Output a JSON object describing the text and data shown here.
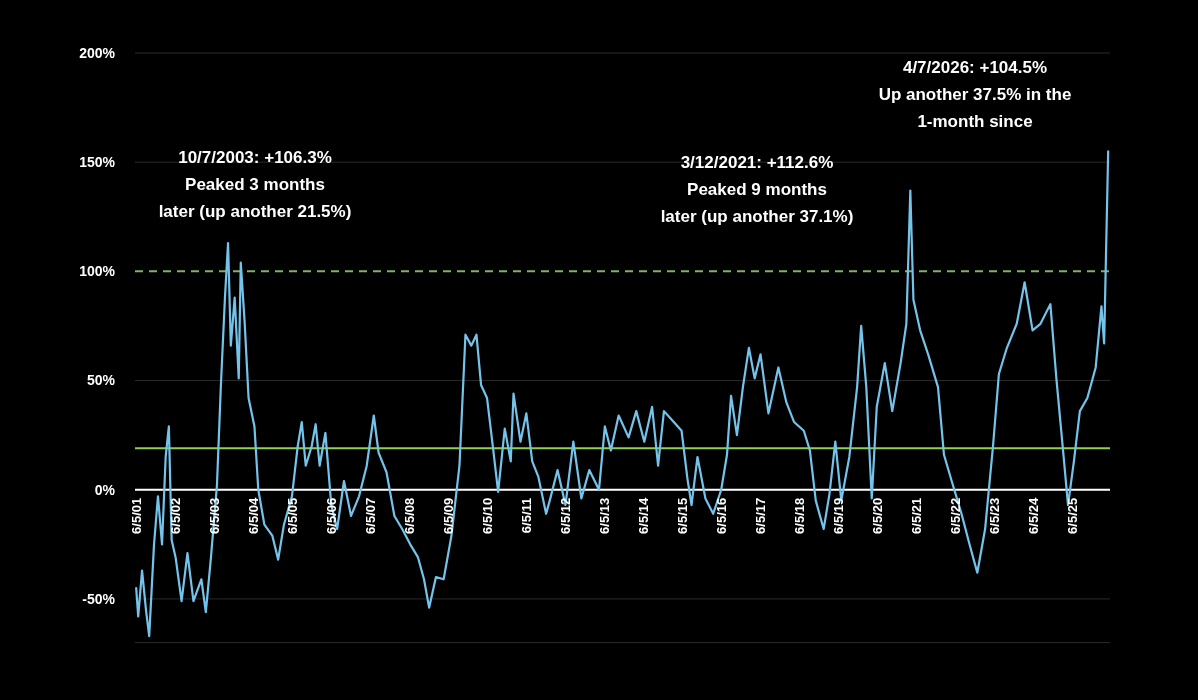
{
  "chart_data": {
    "type": "line",
    "x": [
      "2001-06-05",
      "2001-06-24",
      "2001-07-30",
      "2001-09-07",
      "2001-10-05",
      "2001-11-19",
      "2001-12-26",
      "2002-02-02",
      "2002-03-08",
      "2002-04-07",
      "2002-05-03",
      "2002-06-09",
      "2002-08-04",
      "2002-09-28",
      "2002-11-23",
      "2003-02-05",
      "2003-03-19",
      "2003-05-06",
      "2003-07-01",
      "2003-08-07",
      "2003-09-14",
      "2003-10-13",
      "2003-11-08",
      "2003-12-14",
      "2004-01-21",
      "2004-02-09",
      "2004-03-16",
      "2004-04-22",
      "2004-06-16",
      "2004-07-22",
      "2004-09-17",
      "2004-11-30",
      "2005-01-24",
      "2005-03-19",
      "2005-06-02",
      "2005-07-26",
      "2005-09-02",
      "2005-10-09",
      "2005-12-04",
      "2006-01-10",
      "2006-02-16",
      "2006-04-11",
      "2006-06-05",
      "2006-07-30",
      "2006-10-02",
      "2006-12-07",
      "2007-02-20",
      "2007-05-03",
      "2007-07-08",
      "2007-08-22",
      "2007-11-04",
      "2008-01-17",
      "2008-03-30",
      "2008-06-13",
      "2008-08-25",
      "2008-10-20",
      "2008-12-07",
      "2009-02-09",
      "2009-04-22",
      "2009-07-04",
      "2009-09-17",
      "2009-11-12",
      "2010-01-06",
      "2010-02-23",
      "2010-04-07",
      "2010-06-02",
      "2010-07-26",
      "2010-09-14",
      "2010-11-15",
      "2011-01-10",
      "2011-02-05",
      "2011-04-11",
      "2011-06-05",
      "2011-07-30",
      "2011-09-25",
      "2011-12-07",
      "2012-01-10",
      "2012-03-23",
      "2012-06-05",
      "2012-08-18",
      "2012-11-01",
      "2013-01-14",
      "2013-04-15",
      "2013-06-09",
      "2013-08-04",
      "2013-10-16",
      "2014-01-17",
      "2014-03-30",
      "2014-06-13",
      "2014-08-25",
      "2014-10-20",
      "2014-12-14",
      "2015-03-16",
      "2015-05-28",
      "2015-07-22",
      "2015-08-29",
      "2015-10-24",
      "2016-01-06",
      "2016-03-19",
      "2016-06-02",
      "2016-07-26",
      "2016-09-02",
      "2016-10-27",
      "2016-12-22",
      "2017-02-16",
      "2017-04-11",
      "2017-06-05",
      "2017-08-18",
      "2017-11-19",
      "2018-02-02",
      "2018-04-15",
      "2018-07-15",
      "2018-09-10",
      "2018-11-04",
      "2019-01-17",
      "2019-03-12",
      "2019-05-06",
      "2019-07-01",
      "2019-09-14",
      "2019-11-26",
      "2020-01-03",
      "2020-02-20",
      "2020-04-11",
      "2020-05-28",
      "2020-08-11",
      "2020-10-20",
      "2021-01-06",
      "2021-03-01",
      "2021-04-07",
      "2021-05-06",
      "2021-07-08",
      "2021-09-21",
      "2021-12-22",
      "2022-02-16",
      "2022-04-29",
      "2022-07-30",
      "2022-10-13",
      "2022-12-25",
      "2023-03-08",
      "2023-05-21",
      "2023-07-15",
      "2023-09-28",
      "2023-12-29",
      "2024-03-12",
      "2024-05-25",
      "2024-08-07",
      "2024-11-08",
      "2025-01-03",
      "2025-03-16",
      "2025-04-22",
      "2025-06-16",
      "2025-08-11",
      "2025-10-20",
      "2026-01-06",
      "2026-03-01",
      "2026-03-26",
      "2026-05-03"
    ],
    "series": [
      {
        "color": "#74c3ea",
        "values": [
          -45,
          -58,
          -37,
          -56,
          -67,
          -25,
          -3,
          -25,
          15,
          29,
          -23,
          -31,
          -51,
          -29,
          -51,
          -41,
          -56,
          -31,
          2,
          48,
          88,
          113,
          66,
          88,
          51,
          104,
          77,
          42,
          29,
          0,
          -16,
          -21,
          -32,
          -16,
          -3,
          20,
          31,
          11,
          20,
          30,
          11,
          26,
          -7,
          -18,
          4,
          -12,
          -3,
          11,
          34,
          17,
          8,
          -12,
          -18,
          -25,
          -31,
          -41,
          -54,
          -40,
          -41,
          -21,
          11,
          71,
          66,
          71,
          48,
          42,
          20,
          -1,
          28,
          13,
          44,
          22,
          35,
          13,
          6,
          -11,
          -5,
          9,
          -7,
          22,
          -4,
          9,
          0,
          29,
          18,
          34,
          24,
          36,
          22,
          38,
          11,
          36,
          31,
          27,
          5,
          -7,
          15,
          -4,
          -11,
          0,
          16,
          43,
          25,
          47,
          65,
          51,
          62,
          35,
          56,
          40,
          31,
          27,
          18,
          -5,
          -18,
          -2,
          22,
          -5,
          15,
          47,
          75,
          47,
          -4,
          38,
          58,
          36,
          58,
          76,
          137,
          87,
          73,
          62,
          47,
          16,
          4,
          -11,
          -25,
          -38,
          -18,
          20,
          53,
          65,
          76,
          95,
          73,
          76,
          85,
          51,
          13,
          -7,
          13,
          36,
          42,
          56,
          84,
          67,
          155
        ]
      }
    ],
    "xlim": [
      "2001-05-25",
      "2026-05-20"
    ],
    "xticks": [
      {
        "value": "2001-06-05",
        "label": "6/5/01"
      },
      {
        "value": "2002-06-05",
        "label": "6/5/02"
      },
      {
        "value": "2003-06-05",
        "label": "6/5/03"
      },
      {
        "value": "2004-06-05",
        "label": "6/5/04"
      },
      {
        "value": "2005-06-05",
        "label": "6/5/05"
      },
      {
        "value": "2006-06-05",
        "label": "6/5/06"
      },
      {
        "value": "2007-06-05",
        "label": "6/5/07"
      },
      {
        "value": "2008-06-05",
        "label": "6/5/08"
      },
      {
        "value": "2009-06-05",
        "label": "6/5/09"
      },
      {
        "value": "2010-06-05",
        "label": "6/5/10"
      },
      {
        "value": "2011-06-05",
        "label": "6/5/11"
      },
      {
        "value": "2012-06-05",
        "label": "6/5/12"
      },
      {
        "value": "2013-06-05",
        "label": "6/5/13"
      },
      {
        "value": "2014-06-05",
        "label": "6/5/14"
      },
      {
        "value": "2015-06-05",
        "label": "6/5/15"
      },
      {
        "value": "2016-06-05",
        "label": "6/5/16"
      },
      {
        "value": "2017-06-05",
        "label": "6/5/17"
      },
      {
        "value": "2018-06-05",
        "label": "6/5/18"
      },
      {
        "value": "2019-06-05",
        "label": "6/5/19"
      },
      {
        "value": "2020-06-05",
        "label": "6/5/20"
      },
      {
        "value": "2021-06-05",
        "label": "6/5/21"
      },
      {
        "value": "2022-06-05",
        "label": "6/5/22"
      },
      {
        "value": "2023-06-05",
        "label": "6/5/23"
      },
      {
        "value": "2024-06-05",
        "label": "6/5/24"
      },
      {
        "value": "2025-06-05",
        "label": "6/5/25"
      }
    ],
    "ylim": [
      -70,
      200
    ],
    "yticks": [
      {
        "value": -50,
        "label": "-50%"
      },
      {
        "value": 0,
        "label": "0%"
      },
      {
        "value": 50,
        "label": "50%"
      },
      {
        "value": 100,
        "label": "100%"
      },
      {
        "value": 150,
        "label": "150%"
      },
      {
        "value": 200,
        "label": "200%"
      }
    ],
    "grid": "y",
    "ref_lines": [
      {
        "axis": "y",
        "value": 100,
        "color": "#7fb36a",
        "line_style": "dashed"
      },
      {
        "axis": "y",
        "value": 19,
        "color": "#8fd14f",
        "line_style": "solid"
      }
    ],
    "annotations": [
      "10/7/2003: +106.3%\nPeaked 3 months\nlater (up another 21.5%)",
      "3/12/2021: +112.6%\nPeaked 9 months\nlater (up another 37.1%)",
      "4/7/2026: +104.5%\nUp another 37.5% in the\n1-month since"
    ]
  }
}
